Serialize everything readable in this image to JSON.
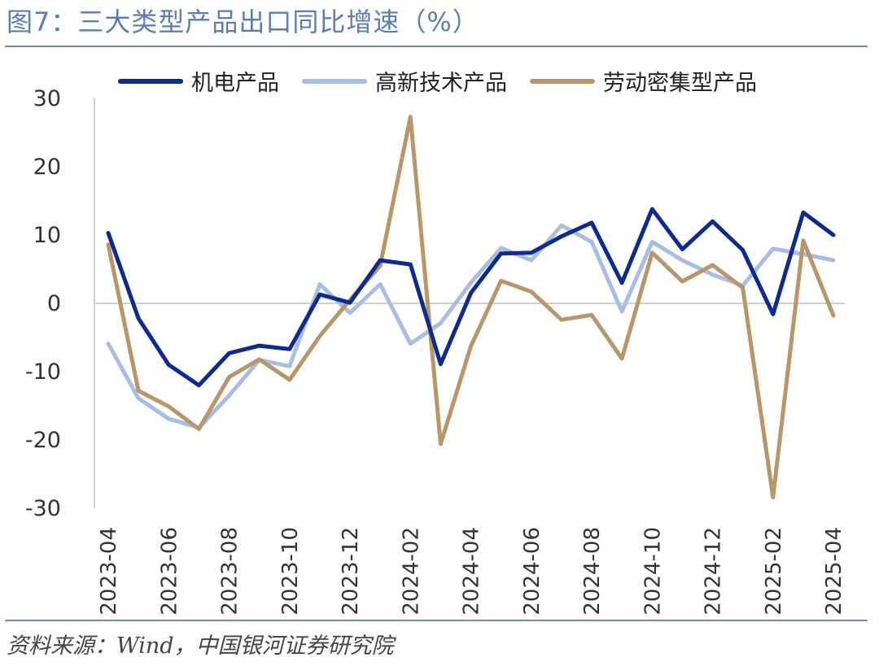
{
  "title": "图7：三大类型产品出口同比增速（%）",
  "source": "资料来源：Wind，中国银河证券研究院",
  "chart_data": {
    "type": "line",
    "x": [
      "2023-04",
      "2023-05",
      "2023-06",
      "2023-07",
      "2023-08",
      "2023-09",
      "2023-10",
      "2023-11",
      "2023-12",
      "2024-01",
      "2024-02",
      "2024-03",
      "2024-04",
      "2024-05",
      "2024-06",
      "2024-07",
      "2024-08",
      "2024-09",
      "2024-10",
      "2024-11",
      "2024-12",
      "2025-01",
      "2025-02",
      "2025-03",
      "2025-04"
    ],
    "x_tick_labels": [
      "2023-04",
      "2023-06",
      "2023-08",
      "2023-10",
      "2023-12",
      "2024-02",
      "2024-04",
      "2024-06",
      "2024-08",
      "2024-10",
      "2024-12",
      "2025-02",
      "2025-04"
    ],
    "ylim": [
      -30,
      30
    ],
    "yticks": [
      30,
      20,
      10,
      0,
      -10,
      -20,
      -30
    ],
    "grid": false,
    "legend_position": "top",
    "series": [
      {
        "name": "机电产品",
        "color": "#0d2b8c",
        "values": [
          10.3,
          -2.2,
          -9.0,
          -12.0,
          -7.3,
          -6.2,
          -6.7,
          1.3,
          0.1,
          6.3,
          5.7,
          -8.9,
          1.5,
          7.3,
          7.4,
          9.8,
          11.8,
          3.0,
          13.8,
          7.9,
          12.0,
          7.8,
          -1.6,
          13.3,
          10.0
        ]
      },
      {
        "name": "高新技术产品",
        "color": "#a8bde6",
        "values": [
          -5.9,
          -13.9,
          -16.9,
          -18.2,
          -13.5,
          -8.3,
          -9.2,
          2.8,
          -1.4,
          2.8,
          -5.9,
          -2.9,
          3.0,
          8.1,
          6.3,
          11.4,
          9.0,
          -1.2,
          9.0,
          6.3,
          4.2,
          2.6,
          8.0,
          7.2,
          6.3
        ]
      },
      {
        "name": "劳动密集型产品",
        "color": "#b8966a",
        "values": [
          8.6,
          -12.8,
          -15.1,
          -18.4,
          -10.8,
          -8.2,
          -11.2,
          -4.8,
          0.5,
          5.5,
          27.3,
          -20.6,
          -6.3,
          3.3,
          1.7,
          -2.4,
          -1.7,
          -8.1,
          7.4,
          3.2,
          5.6,
          2.3,
          -28.4,
          9.2,
          -1.8
        ]
      }
    ]
  }
}
